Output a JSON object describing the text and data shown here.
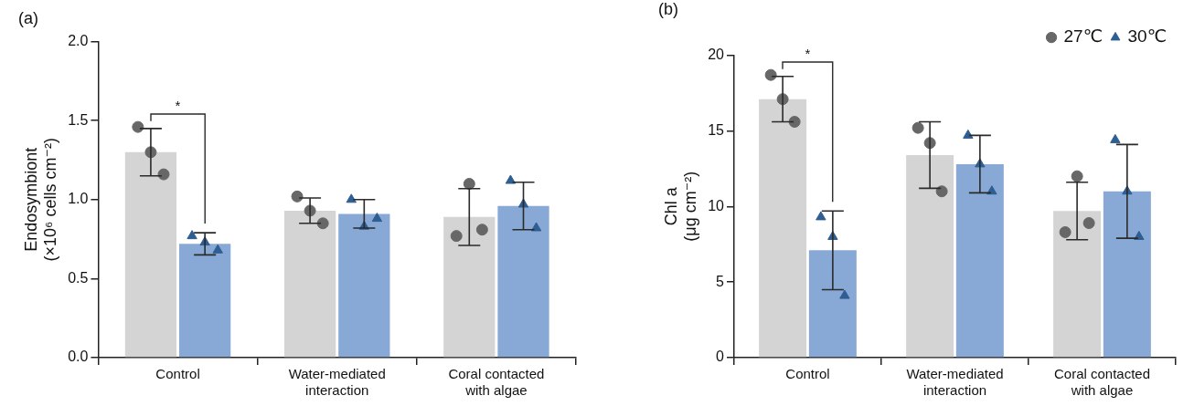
{
  "chart_data": [
    {
      "type": "bar",
      "title": "(a)",
      "ylabel": "Endosymbiont\n(×10⁶ cells cm⁻²)",
      "categories": [
        "Control",
        "Water-mediated interaction",
        "Coral contacted with algae"
      ],
      "ylim": [
        0,
        2
      ],
      "yticks": [
        {
          "value": 0,
          "label": "0.0"
        },
        {
          "value": 0.5,
          "label": "0.5"
        },
        {
          "value": 1,
          "label": "1.0"
        },
        {
          "value": 1.5,
          "label": "1.5"
        },
        {
          "value": 2,
          "label": "2.0"
        }
      ],
      "annotations": [
        "*"
      ],
      "series": [
        {
          "color": "#d4d4d4",
          "values": [
            1.3,
            0.93,
            0.89
          ],
          "errors": [
            0.15,
            0.08,
            0.18
          ]
        },
        {
          "color": "#88a9d5",
          "values": [
            0.72,
            0.91,
            0.96
          ],
          "errors": [
            0.07,
            0.09,
            0.15
          ]
        },
        {
          "type": "scatter",
          "marker": "circle",
          "color": "#676767",
          "x": [
            "Control",
            "Control",
            "Control",
            "Water-mediated interaction",
            "Water-mediated interaction",
            "Water-mediated interaction",
            "Coral contacted with algae",
            "Coral contacted with algae",
            "Coral contacted with algae"
          ],
          "values": [
            1.46,
            1.3,
            1.16,
            1.02,
            0.93,
            0.85,
            0.77,
            1.1,
            0.81
          ]
        },
        {
          "type": "scatter",
          "marker": "triangle",
          "color": "#2f5e92",
          "x": [
            "Control",
            "Control",
            "Control",
            "Water-mediated interaction",
            "Water-mediated interaction",
            "Water-mediated interaction",
            "Coral contacted with algae",
            "Coral contacted with algae",
            "Coral contacted with algae"
          ],
          "values": [
            0.77,
            0.73,
            0.68,
            1.0,
            0.83,
            0.88,
            1.12,
            0.97,
            0.82
          ]
        }
      ]
    },
    {
      "type": "bar",
      "title": "(b)",
      "ylabel": "Chl a\n(μg cm⁻²)",
      "categories": [
        "Control",
        "Water-mediated interaction",
        "Coral contacted with algae"
      ],
      "ylim": [
        0,
        20
      ],
      "yticks": [
        0,
        5,
        10,
        15,
        20
      ],
      "annotations": [
        "*"
      ],
      "legend": "top right",
      "series": [
        {
          "color": "#d4d4d4",
          "values": [
            17.1,
            13.4,
            9.7
          ],
          "errors": [
            1.5,
            2.2,
            1.9
          ]
        },
        {
          "color": "#88a9d5",
          "values": [
            7.1,
            12.8,
            11.0
          ],
          "errors": [
            2.6,
            1.9,
            3.1
          ]
        },
        {
          "type": "scatter",
          "name": "27℃",
          "marker": "circle",
          "color": "#676767",
          "x": [
            "Control",
            "Control",
            "Control",
            "Water-mediated interaction",
            "Water-mediated interaction",
            "Water-mediated interaction",
            "Coral contacted with algae",
            "Coral contacted with algae",
            "Coral contacted with algae"
          ],
          "values": [
            18.7,
            17.1,
            15.6,
            15.2,
            14.2,
            11.0,
            8.3,
            12.0,
            8.9
          ]
        },
        {
          "type": "scatter",
          "name": "30℃",
          "marker": "triangle",
          "color": "#2f5e92",
          "x": [
            "Control",
            "Control",
            "Control",
            "Water-mediated interaction",
            "Water-mediated interaction",
            "Water-mediated interaction",
            "Coral contacted with algae",
            "Coral contacted with algae",
            "Coral contacted with algae"
          ],
          "values": [
            9.3,
            8.0,
            4.1,
            14.7,
            12.8,
            11.0,
            14.4,
            11.0,
            8.0
          ]
        }
      ]
    }
  ]
}
